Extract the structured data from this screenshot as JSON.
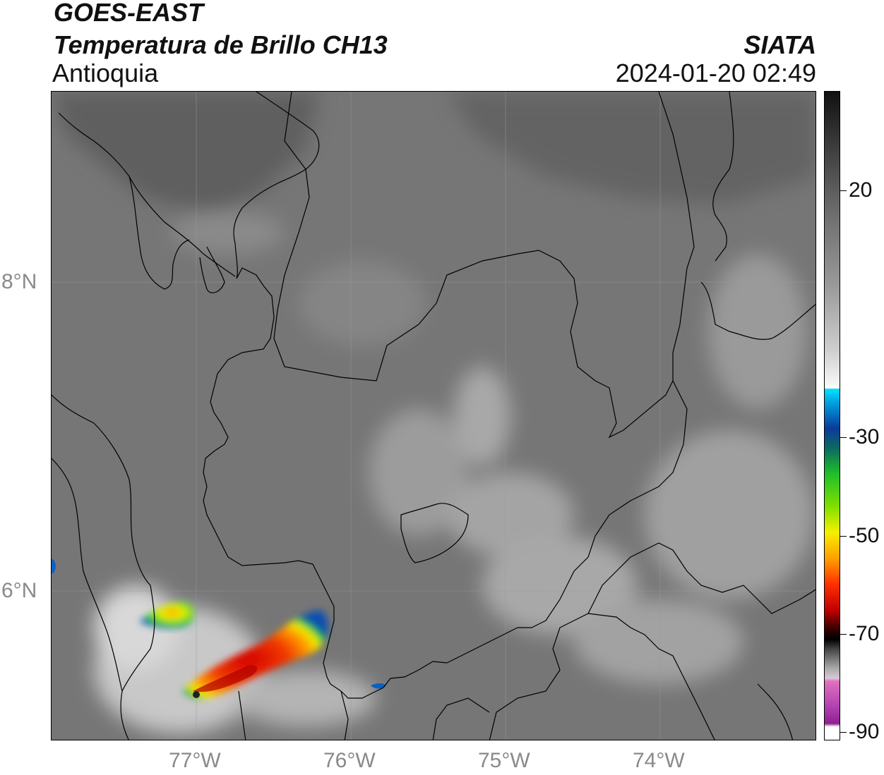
{
  "header": {
    "title_line1": "GOES-EAST",
    "title_line2": "Temperatura de Brillo CH13",
    "region": "Antioquia",
    "agency": "SIATA",
    "datetime": "2024-01-20 02:49"
  },
  "map": {
    "lon_labels": [
      "77°W",
      "76°W",
      "75°W",
      "74°W"
    ],
    "lat_labels": [
      "8°N",
      "6°N"
    ]
  },
  "colorbar": {
    "ticks": [
      "20",
      "-30",
      "-50",
      "-70",
      "-90"
    ],
    "colors": {
      "warm_dark": "#111111",
      "mid_gray": "#7a7a7a",
      "light": "#f2f2f2",
      "cyan": "#00e5ff",
      "blue": "#0a3a9a",
      "green": "#1fbf2a",
      "yellow": "#f5f000",
      "orange": "#ff8a00",
      "red": "#e01010",
      "black": "#000000",
      "pink": "#e070c0",
      "purple": "#9a30a8"
    }
  }
}
